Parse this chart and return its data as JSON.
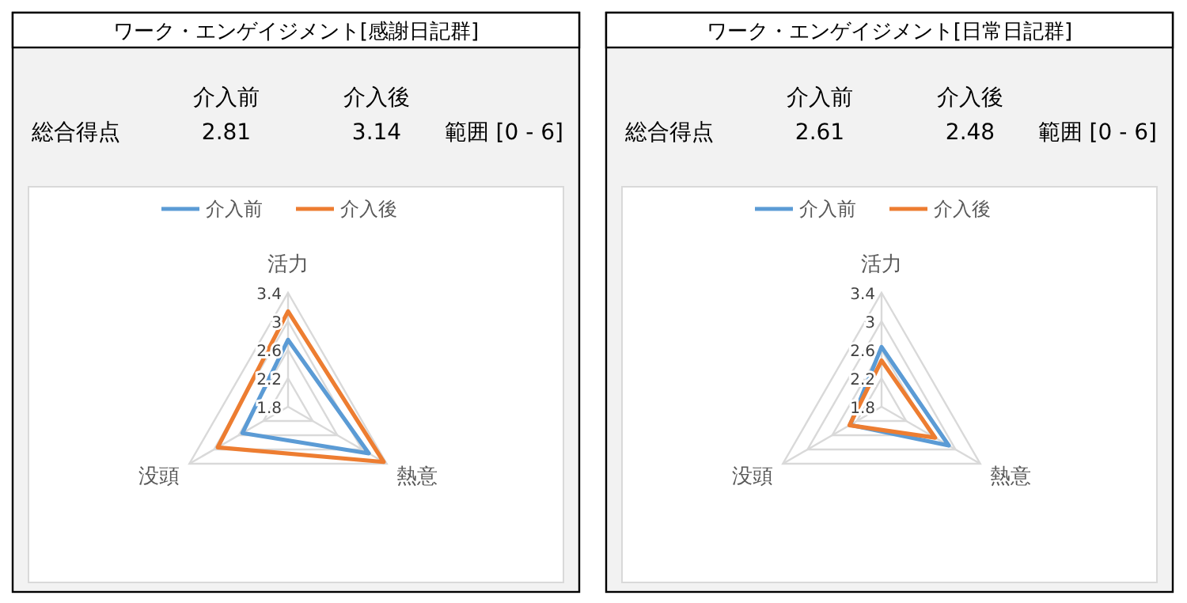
{
  "chart_data": [
    {
      "type": "radar",
      "title": "ワーク・エンゲイジメント[感謝日記群]",
      "annotations": [
        "介入前",
        "介入後",
        "総合得点",
        "2.81",
        "3.14",
        "範囲 [0 - 6]"
      ],
      "categories": [
        "活力",
        "熱意",
        "没頭"
      ],
      "ylim": [
        1.8,
        3.4
      ],
      "yticks": [
        1.8,
        2.2,
        2.6,
        3,
        3.4
      ],
      "grid": true,
      "legend": "top",
      "marker": "none",
      "series": [
        {
          "name": "介入前",
          "color": "#5b9bd5",
          "values": [
            2.74,
            3.11,
            2.54
          ]
        },
        {
          "name": "介入後",
          "color": "#ed7d31",
          "values": [
            3.14,
            3.35,
            2.94
          ]
        }
      ]
    },
    {
      "type": "radar",
      "title": "ワーク・エンゲイジメント[日常日記群]",
      "annotations": [
        "介入前",
        "介入後",
        "総合得点",
        "2.61",
        "2.48",
        "範囲 [0 - 6]"
      ],
      "categories": [
        "活力",
        "熱意",
        "没頭"
      ],
      "ylim": [
        1.8,
        3.4
      ],
      "yticks": [
        1.8,
        2.2,
        2.6,
        3,
        3.4
      ],
      "grid": true,
      "legend": "top",
      "marker": "none",
      "series": [
        {
          "name": "介入前",
          "color": "#5b9bd5",
          "values": [
            2.64,
            2.89,
            2.31
          ]
        },
        {
          "name": "介入後",
          "color": "#ed7d31",
          "values": [
            2.45,
            2.67,
            2.32
          ]
        }
      ]
    }
  ]
}
